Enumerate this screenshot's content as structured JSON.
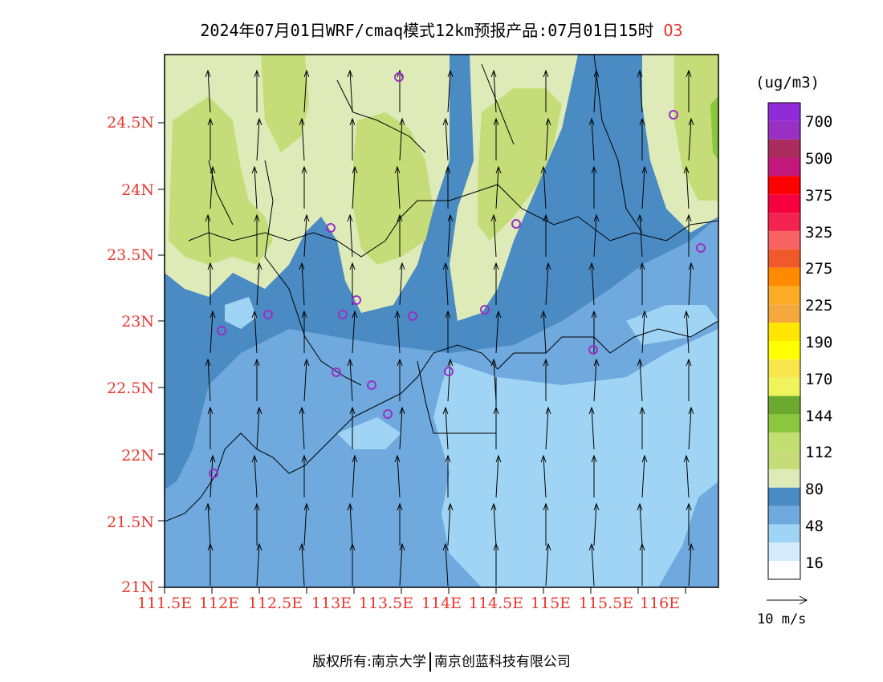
{
  "title": {
    "text": "2024年07月01日WRF/cmaq模式12km预报产品:07月01日15时",
    "species": "O3"
  },
  "axes": {
    "lat_labels": [
      "24.5N",
      "24N",
      "23.5N",
      "23N",
      "22.5N",
      "22N",
      "21.5N",
      "21N"
    ],
    "lon_labels": [
      "111.5E",
      "112E",
      "112.5E",
      "113E",
      "113.5E",
      "114E",
      "114.5E",
      "115E",
      "115.5E",
      "116E"
    ]
  },
  "colorbar": {
    "unit": "(ug/m3)",
    "labels": [
      "700",
      "500",
      "375",
      "325",
      "275",
      "225",
      "190",
      "170",
      "144",
      "112",
      "80",
      "48",
      "16"
    ],
    "colors": [
      "#8f2bd9",
      "#9a2fc4",
      "#aa2b5e",
      "#c2177b",
      "#ff0000",
      "#f7003f",
      "#f2234f",
      "#f86262",
      "#f05a2a",
      "#ff8a00",
      "#fbab24",
      "#f5a83c",
      "#ffe600",
      "#ffff00",
      "#f8e64c",
      "#eff35c",
      "#6ca92f",
      "#8ac73c",
      "#c3df72",
      "#c6dc78",
      "#dfeab9",
      "#4a8bc4",
      "#6fa9dd",
      "#9fd4f4",
      "#d4ecfb",
      "#ffffff"
    ]
  },
  "wind_reference": "10 m/s",
  "footer": {
    "copyright": "版权所有:南京大学",
    "partner": "南京创蓝科技有限公司"
  }
}
